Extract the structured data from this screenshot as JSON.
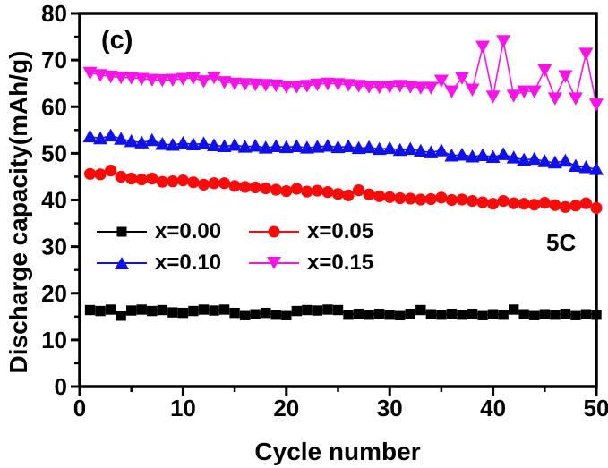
{
  "figure": {
    "panel_label": "(c)",
    "rate_annotation": "5C",
    "x_title": "Cycle number",
    "y_title": "Discharge capacity(mAh/g)"
  },
  "legend": {
    "position": "inside-left-middle",
    "items": [
      {
        "label": "x=0.00",
        "color": "#000000",
        "marker": "square"
      },
      {
        "label": "x=0.05",
        "color": "#f80b0b",
        "marker": "circle"
      },
      {
        "label": "x=0.10",
        "color": "#1010e8",
        "marker": "triangle-up"
      },
      {
        "label": "x=0.15",
        "color": "#f814e8",
        "marker": "triangle-down"
      }
    ]
  },
  "chart_data": {
    "type": "line",
    "title": "",
    "xlabel": "Cycle number",
    "ylabel": "Discharge capacity(mAh/g)",
    "xlim": [
      0,
      50
    ],
    "ylim": [
      0,
      80
    ],
    "x_major_ticks": [
      0,
      10,
      20,
      30,
      40,
      50
    ],
    "x_minor_ticks": [
      5,
      15,
      25,
      35,
      45
    ],
    "y_major_ticks": [
      0,
      10,
      20,
      30,
      40,
      50,
      60,
      70,
      80
    ],
    "y_minor_ticks": [
      5,
      15,
      25,
      35,
      45,
      55,
      65,
      75
    ],
    "grid": false,
    "annotations": [
      {
        "text": "(c)",
        "position": "top-left-inside"
      },
      {
        "text": "5C",
        "position": "right-middle-inside"
      }
    ],
    "x": [
      1,
      2,
      3,
      4,
      5,
      6,
      7,
      8,
      9,
      10,
      11,
      12,
      13,
      14,
      15,
      16,
      17,
      18,
      19,
      20,
      21,
      22,
      23,
      24,
      25,
      26,
      27,
      28,
      29,
      30,
      31,
      32,
      33,
      34,
      35,
      36,
      37,
      38,
      39,
      40,
      41,
      42,
      43,
      44,
      45,
      46,
      47,
      48,
      49,
      50
    ],
    "series": [
      {
        "name": "x=0.00",
        "color": "#000000",
        "marker": "square",
        "values": [
          16.4,
          16.2,
          16.5,
          15.2,
          16.3,
          16.5,
          16.2,
          16.4,
          15.9,
          15.8,
          16.2,
          16.5,
          16.3,
          16.5,
          15.8,
          15.3,
          15.5,
          15.8,
          15.4,
          15.3,
          16.2,
          16.4,
          16.3,
          16.5,
          16.4,
          15.4,
          15.6,
          15.4,
          15.6,
          15.4,
          15.3,
          15.6,
          16.4,
          15.5,
          15.4,
          15.6,
          15.4,
          15.6,
          15.3,
          15.5,
          15.4,
          16.5,
          15.5,
          15.3,
          15.5,
          15.4,
          15.6,
          15.3,
          15.5,
          15.4
        ]
      },
      {
        "name": "x=0.05",
        "color": "#f80b0b",
        "marker": "circle",
        "values": [
          45.6,
          45.5,
          46.3,
          45.0,
          44.6,
          44.4,
          44.6,
          43.9,
          44.0,
          44.2,
          43.8,
          43.3,
          43.6,
          43.6,
          43.0,
          42.8,
          42.7,
          42.5,
          42.2,
          41.9,
          42.4,
          41.8,
          42.0,
          41.7,
          41.3,
          41.0,
          42.1,
          41.2,
          40.8,
          40.6,
          40.4,
          40.3,
          40.1,
          40.2,
          40.5,
          40.0,
          40.1,
          39.8,
          39.5,
          39.2,
          39.8,
          39.3,
          39.2,
          39.0,
          39.4,
          38.9,
          38.5,
          38.8,
          39.3,
          38.3
        ]
      },
      {
        "name": "x=0.10",
        "color": "#1010e8",
        "marker": "triangle-up",
        "values": [
          53.6,
          53.2,
          53.8,
          53.1,
          52.6,
          52.3,
          52.8,
          52.0,
          51.8,
          52.2,
          51.9,
          52.1,
          51.7,
          51.5,
          51.8,
          51.4,
          51.6,
          51.2,
          51.5,
          51.3,
          51.5,
          51.2,
          51.4,
          51.6,
          51.3,
          51.5,
          51.1,
          51.3,
          50.9,
          51.1,
          50.7,
          50.9,
          50.5,
          50.2,
          50.6,
          49.5,
          49.7,
          49.3,
          49.6,
          49.2,
          49.8,
          49.1,
          48.6,
          48.8,
          48.3,
          48.0,
          48.4,
          47.3,
          47.0,
          46.6
        ]
      },
      {
        "name": "x=0.15",
        "color": "#f814e8",
        "marker": "triangle-down",
        "values": [
          67.3,
          66.8,
          66.5,
          66.3,
          66.2,
          66.0,
          65.8,
          65.7,
          65.8,
          66.0,
          66.2,
          65.5,
          66.3,
          65.3,
          65.0,
          64.9,
          64.8,
          64.7,
          64.6,
          64.3,
          64.3,
          64.5,
          64.8,
          65.0,
          64.9,
          64.7,
          64.5,
          64.3,
          64.2,
          64.3,
          64.5,
          64.3,
          64.1,
          64.1,
          65.6,
          63.3,
          66.2,
          63.7,
          72.9,
          62.2,
          74.1,
          62.4,
          63.3,
          63.3,
          67.9,
          61.8,
          66.6,
          61.8,
          71.4,
          60.5
        ]
      }
    ]
  }
}
